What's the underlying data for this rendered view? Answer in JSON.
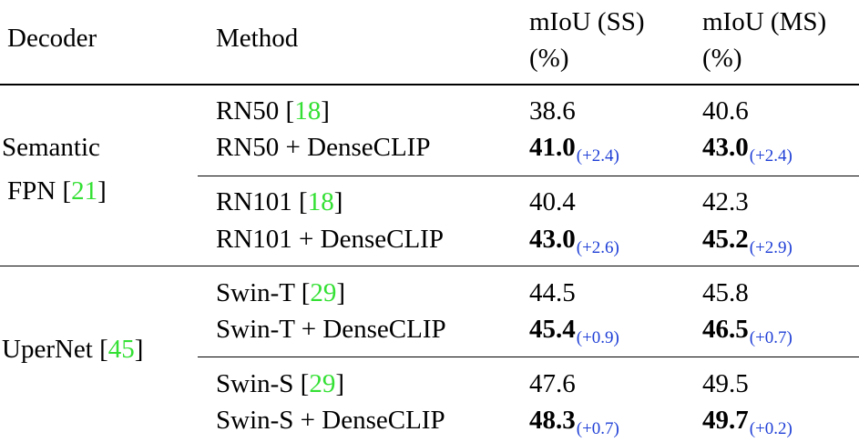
{
  "header": {
    "decoder": "Decoder",
    "method": "Method",
    "ss_line1": "mIoU (SS)",
    "ss_line2": "(%)",
    "ms_line1": "mIoU (MS)",
    "ms_line2": "(%)"
  },
  "groups": [
    {
      "decoder_line1": "Semantic",
      "decoder_line2_text": "FPN [",
      "decoder_line2_cite": "21",
      "decoder_line2_close": "]",
      "blocks": [
        {
          "baseline": {
            "method": "RN50 [",
            "cite": "18",
            "close": "]",
            "ss": "38.6",
            "ms": "40.6"
          },
          "dense": {
            "method": "RN50 + DenseCLIP",
            "ss": "41.0",
            "ss_delta": "(+2.4)",
            "ms": "43.0",
            "ms_delta": "(+2.4)"
          }
        },
        {
          "baseline": {
            "method": "RN101 [",
            "cite": "18",
            "close": "]",
            "ss": "40.4",
            "ms": "42.3"
          },
          "dense": {
            "method": "RN101 + DenseCLIP",
            "ss": "43.0",
            "ss_delta": "(+2.6)",
            "ms": "45.2",
            "ms_delta": "(+2.9)"
          }
        }
      ]
    },
    {
      "decoder_line1_text": "UperNet [",
      "decoder_line1_cite": "45",
      "decoder_line1_close": "]",
      "blocks": [
        {
          "baseline": {
            "method": "Swin-T [",
            "cite": "29",
            "close": "]",
            "ss": "44.5",
            "ms": "45.8"
          },
          "dense": {
            "method": "Swin-T + DenseCLIP",
            "ss": "45.4",
            "ss_delta": "(+0.9)",
            "ms": "46.5",
            "ms_delta": "(+0.7)"
          }
        },
        {
          "baseline": {
            "method": "Swin-S [",
            "cite": "29",
            "close": "]",
            "ss": "47.6",
            "ms": "49.5"
          },
          "dense": {
            "method": "Swin-S + DenseCLIP",
            "ss": "48.3",
            "ss_delta": "(+0.7)",
            "ms": "49.7",
            "ms_delta": "(+0.2)"
          }
        }
      ]
    }
  ]
}
